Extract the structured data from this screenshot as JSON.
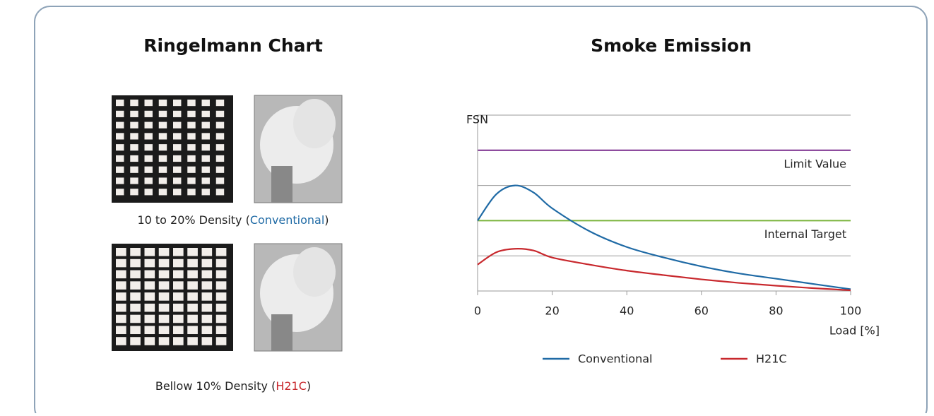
{
  "ringelmann": {
    "title": "Ringelmann Chart",
    "captions": [
      {
        "before": "10 to 20% Density (",
        "highlight": "Conventional",
        "after": ")",
        "color": "#1f6aa5"
      },
      {
        "before": "Bellow 10% Density (",
        "highlight": "H21C",
        "after": ")",
        "color": "#c8282d"
      }
    ]
  },
  "chart_data": {
    "type": "line",
    "title": "Smoke Emission",
    "y_label": "FSN",
    "x_label": "Load [%]",
    "x": [
      0,
      5,
      10,
      15,
      20,
      30,
      40,
      50,
      60,
      70,
      80,
      90,
      100
    ],
    "series": [
      {
        "name": "Conventional",
        "color": "#1f6aa5",
        "values": [
          2.0,
          2.75,
          3.0,
          2.8,
          2.35,
          1.7,
          1.25,
          0.95,
          0.7,
          0.5,
          0.35,
          0.2,
          0.05
        ]
      },
      {
        "name": "H21C",
        "color": "#c8282d",
        "values": [
          0.75,
          1.1,
          1.2,
          1.15,
          0.95,
          0.75,
          0.58,
          0.45,
          0.33,
          0.23,
          0.15,
          0.08,
          0.02
        ]
      }
    ],
    "reference_lines": [
      {
        "name": "Limit Value",
        "value": 4,
        "color": "#7b2d8e"
      },
      {
        "name": "Internal Target",
        "value": 2,
        "color": "#7ab43c"
      }
    ],
    "xlim": [
      0,
      100
    ],
    "xticks": [
      0,
      20,
      40,
      60,
      80,
      100
    ],
    "ylim": [
      0,
      5
    ],
    "yticks": [
      1,
      3,
      5
    ],
    "grid": true
  }
}
